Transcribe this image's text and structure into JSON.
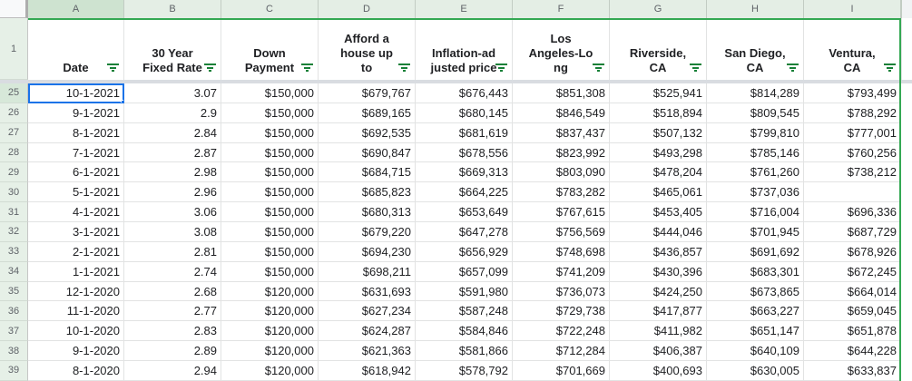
{
  "app": {
    "kind": "spreadsheet-grid",
    "frozen_row_number": "1"
  },
  "colors": {
    "accent_green": "#34a853",
    "icon_green": "#188038",
    "selection_blue": "#1a73e8",
    "col_header_bg": "#e4eee5",
    "col_header_active_bg": "#cee3d0",
    "row_header_active_bg": "#d7e8d9"
  },
  "columns": [
    {
      "letter": "A",
      "label": "Date",
      "display": "Date",
      "has_filter": true
    },
    {
      "letter": "B",
      "label": "30 Year Fixed Rate",
      "display": "30 Year\nFixed Rate",
      "has_filter": true
    },
    {
      "letter": "C",
      "label": "Down Payment",
      "display": "Down\nPayment",
      "has_filter": true
    },
    {
      "letter": "D",
      "label": "Afford a house up to",
      "display": "Afford a\nhouse up\nto",
      "has_filter": true
    },
    {
      "letter": "E",
      "label": "Inflation-adjusted price",
      "display": "Inflation-ad\njusted price",
      "has_filter": true
    },
    {
      "letter": "F",
      "label": "Los Angeles-Long",
      "display": "Los\nAngeles-Lo\nng",
      "has_filter": true
    },
    {
      "letter": "G",
      "label": "Riverside, CA",
      "display": "Riverside,\nCA",
      "has_filter": true
    },
    {
      "letter": "H",
      "label": "San Diego, CA",
      "display": "San Diego,\nCA",
      "has_filter": true
    },
    {
      "letter": "I",
      "label": "Ventura, CA",
      "display": "Ventura,\nCA",
      "has_filter": true
    }
  ],
  "selection": {
    "cell": "A25",
    "column": "A",
    "row": "25",
    "value": "10-1-2021"
  },
  "rows": [
    {
      "n": "25",
      "cells": [
        "10-1-2021",
        "3.07",
        "$150,000",
        "$679,767",
        "$676,443",
        "$851,308",
        "$525,941",
        "$814,289",
        "$793,499"
      ]
    },
    {
      "n": "26",
      "cells": [
        "9-1-2021",
        "2.9",
        "$150,000",
        "$689,165",
        "$680,145",
        "$846,549",
        "$518,894",
        "$809,545",
        "$788,292"
      ]
    },
    {
      "n": "27",
      "cells": [
        "8-1-2021",
        "2.84",
        "$150,000",
        "$692,535",
        "$681,619",
        "$837,437",
        "$507,132",
        "$799,810",
        "$777,001"
      ]
    },
    {
      "n": "28",
      "cells": [
        "7-1-2021",
        "2.87",
        "$150,000",
        "$690,847",
        "$678,556",
        "$823,992",
        "$493,298",
        "$785,146",
        "$760,256"
      ]
    },
    {
      "n": "29",
      "cells": [
        "6-1-2021",
        "2.98",
        "$150,000",
        "$684,715",
        "$669,313",
        "$803,090",
        "$478,204",
        "$761,260",
        "$738,212"
      ]
    },
    {
      "n": "30",
      "cells": [
        "5-1-2021",
        "2.96",
        "$150,000",
        "$685,823",
        "$664,225",
        "$783,282",
        "$465,061",
        "$737,036",
        ""
      ]
    },
    {
      "n": "31",
      "cells": [
        "4-1-2021",
        "3.06",
        "$150,000",
        "$680,313",
        "$653,649",
        "$767,615",
        "$453,405",
        "$716,004",
        "$696,336"
      ]
    },
    {
      "n": "32",
      "cells": [
        "3-1-2021",
        "3.08",
        "$150,000",
        "$679,220",
        "$647,278",
        "$756,569",
        "$444,046",
        "$701,945",
        "$687,729"
      ]
    },
    {
      "n": "33",
      "cells": [
        "2-1-2021",
        "2.81",
        "$150,000",
        "$694,230",
        "$656,929",
        "$748,698",
        "$436,857",
        "$691,692",
        "$678,926"
      ]
    },
    {
      "n": "34",
      "cells": [
        "1-1-2021",
        "2.74",
        "$150,000",
        "$698,211",
        "$657,099",
        "$741,209",
        "$430,396",
        "$683,301",
        "$672,245"
      ]
    },
    {
      "n": "35",
      "cells": [
        "12-1-2020",
        "2.68",
        "$120,000",
        "$631,693",
        "$591,980",
        "$736,073",
        "$424,250",
        "$673,865",
        "$664,014"
      ]
    },
    {
      "n": "36",
      "cells": [
        "11-1-2020",
        "2.77",
        "$120,000",
        "$627,234",
        "$587,248",
        "$729,738",
        "$417,877",
        "$663,227",
        "$659,045"
      ]
    },
    {
      "n": "37",
      "cells": [
        "10-1-2020",
        "2.83",
        "$120,000",
        "$624,287",
        "$584,846",
        "$722,248",
        "$411,982",
        "$651,147",
        "$651,878"
      ]
    },
    {
      "n": "38",
      "cells": [
        "9-1-2020",
        "2.89",
        "$120,000",
        "$621,363",
        "$581,866",
        "$712,284",
        "$406,387",
        "$640,109",
        "$644,228"
      ]
    },
    {
      "n": "39",
      "cells": [
        "8-1-2020",
        "2.94",
        "$120,000",
        "$618,942",
        "$578,792",
        "$701,669",
        "$400,693",
        "$630,005",
        "$633,837"
      ]
    }
  ]
}
